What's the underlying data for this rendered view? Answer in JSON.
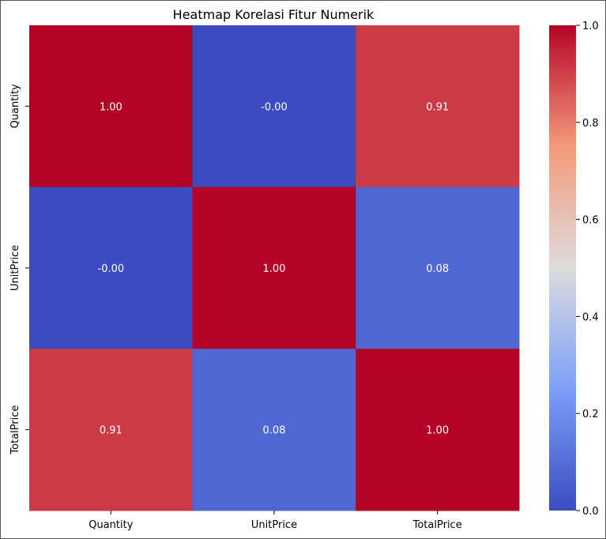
{
  "chart_data": {
    "type": "heatmap",
    "title": "Heatmap Korelasi Fitur Numerik",
    "x_labels": [
      "Quantity",
      "UnitPrice",
      "TotalPrice"
    ],
    "y_labels": [
      "Quantity",
      "UnitPrice",
      "TotalPrice"
    ],
    "values": [
      [
        1.0,
        -0.0,
        0.91
      ],
      [
        -0.0,
        1.0,
        0.08
      ],
      [
        0.91,
        0.08,
        1.0
      ]
    ],
    "annotations": [
      [
        "1.00",
        "-0.00",
        "0.91"
      ],
      [
        "-0.00",
        "1.00",
        "0.08"
      ],
      [
        "0.91",
        "0.08",
        "1.00"
      ]
    ],
    "colormap": "coolwarm",
    "colorbar": {
      "range": [
        0.0,
        1.0
      ],
      "ticks": [
        "0.0",
        "0.2",
        "0.4",
        "0.6",
        "0.8",
        "1.0"
      ]
    },
    "annotation_color": "#ffffff"
  }
}
